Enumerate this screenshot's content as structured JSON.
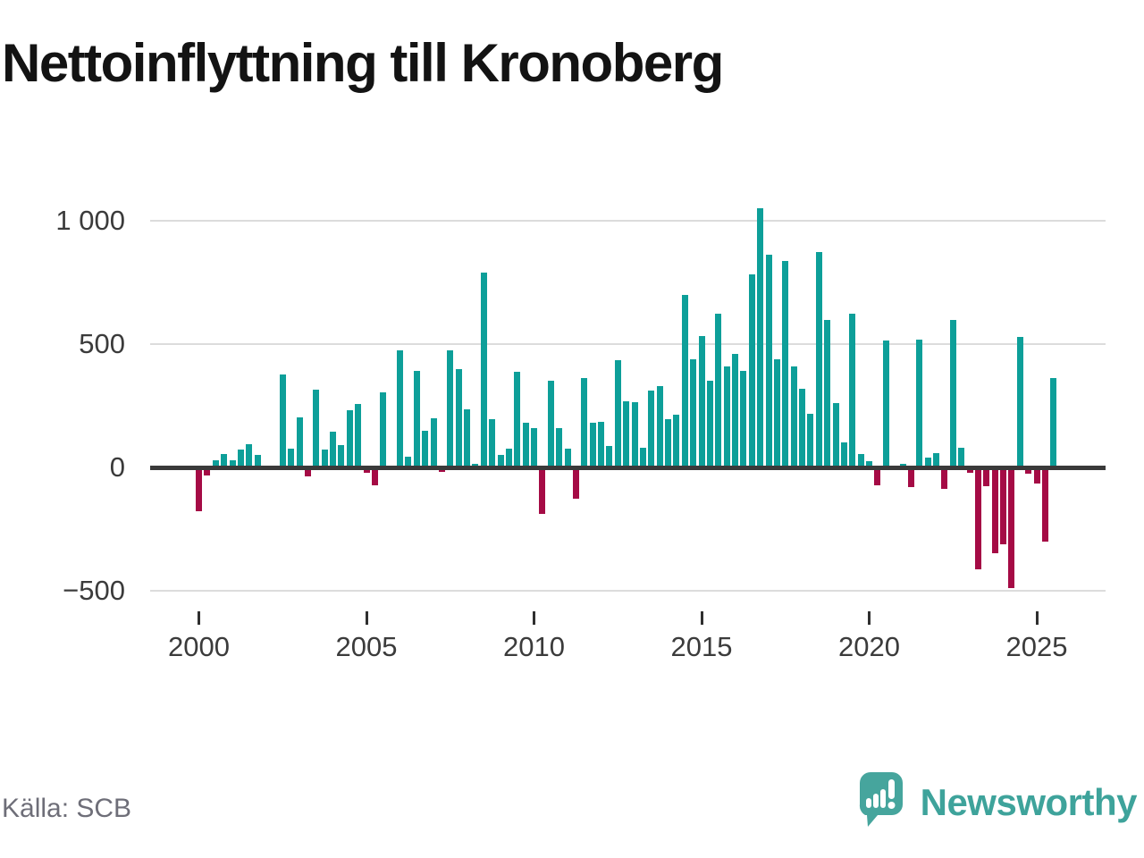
{
  "title": "Nettoinflyttning till Kronoberg",
  "source": "Källa: SCB",
  "logo": {
    "name": "Newsworthy"
  },
  "colors": {
    "positive": "#0d9f99",
    "negative": "#a50b45",
    "axis": "#3a3a3a",
    "grid": "#dcdcdc",
    "tick_text": "#3b3b3b",
    "source_text": "#6e6e78",
    "logo_teal": "#3ea39b",
    "title_text": "#131313"
  },
  "chart_data": {
    "type": "bar",
    "title": "Nettoinflyttning till Kronoberg",
    "xlabel": "",
    "ylabel": "",
    "grid": "horizontal",
    "ylim": [
      -500,
      1100
    ],
    "x_range": [
      "2000Q1",
      "2025Q3"
    ],
    "x": [
      "2000Q1",
      "2000Q2",
      "2000Q3",
      "2000Q4",
      "2001Q1",
      "2001Q2",
      "2001Q3",
      "2001Q4",
      "2002Q1",
      "2002Q2",
      "2002Q3",
      "2002Q4",
      "2003Q1",
      "2003Q2",
      "2003Q3",
      "2003Q4",
      "2004Q1",
      "2004Q2",
      "2004Q3",
      "2004Q4",
      "2005Q1",
      "2005Q2",
      "2005Q3",
      "2005Q4",
      "2006Q1",
      "2006Q2",
      "2006Q3",
      "2006Q4",
      "2007Q1",
      "2007Q2",
      "2007Q3",
      "2007Q4",
      "2008Q1",
      "2008Q2",
      "2008Q3",
      "2008Q4",
      "2009Q1",
      "2009Q2",
      "2009Q3",
      "2009Q4",
      "2010Q1",
      "2010Q2",
      "2010Q3",
      "2010Q4",
      "2011Q1",
      "2011Q2",
      "2011Q3",
      "2011Q4",
      "2012Q1",
      "2012Q2",
      "2012Q3",
      "2012Q4",
      "2013Q1",
      "2013Q2",
      "2013Q3",
      "2013Q4",
      "2014Q1",
      "2014Q2",
      "2014Q3",
      "2014Q4",
      "2015Q1",
      "2015Q2",
      "2015Q3",
      "2015Q4",
      "2016Q1",
      "2016Q2",
      "2016Q3",
      "2016Q4",
      "2017Q1",
      "2017Q2",
      "2017Q3",
      "2017Q4",
      "2018Q1",
      "2018Q2",
      "2018Q3",
      "2018Q4",
      "2019Q1",
      "2019Q2",
      "2019Q3",
      "2019Q4",
      "2020Q1",
      "2020Q2",
      "2020Q3",
      "2020Q4",
      "2021Q1",
      "2021Q2",
      "2021Q3",
      "2021Q4",
      "2022Q1",
      "2022Q2",
      "2022Q3",
      "2022Q4",
      "2023Q1",
      "2023Q2",
      "2023Q3",
      "2023Q4",
      "2024Q1",
      "2024Q2",
      "2024Q3",
      "2024Q4",
      "2025Q1",
      "2025Q2",
      "2025Q3"
    ],
    "values": [
      -178,
      -33,
      29,
      54,
      29,
      73,
      95,
      49,
      7,
      0,
      377,
      77,
      203,
      -35,
      316,
      71,
      146,
      89,
      230,
      258,
      -20,
      -72,
      303,
      0,
      472,
      43,
      390,
      149,
      198,
      -18,
      475,
      398,
      235,
      15,
      789,
      196,
      50,
      77,
      388,
      182,
      160,
      -188,
      350,
      160,
      77,
      -126,
      361,
      180,
      184,
      88,
      434,
      267,
      264,
      78,
      312,
      328,
      196,
      214,
      699,
      437,
      532,
      350,
      621,
      407,
      461,
      389,
      782,
      1048,
      860,
      439,
      836,
      410,
      320,
      218,
      872,
      595,
      259,
      103,
      623,
      55,
      26,
      -73,
      512,
      0,
      13,
      -80,
      518,
      41,
      58,
      -87,
      596,
      80,
      -22,
      -413,
      -77,
      -347,
      -310,
      -490,
      527,
      -25,
      -64,
      -300,
      362
    ],
    "yticks": [
      {
        "value": 1000,
        "label": "1 000"
      },
      {
        "value": 500,
        "label": "500"
      },
      {
        "value": 0,
        "label": "0"
      },
      {
        "value": -500,
        "label": "−500"
      }
    ],
    "xticks": [
      {
        "year": 2000,
        "label": "2000"
      },
      {
        "year": 2005,
        "label": "2005"
      },
      {
        "year": 2010,
        "label": "2010"
      },
      {
        "year": 2015,
        "label": "2015"
      },
      {
        "year": 2020,
        "label": "2020"
      },
      {
        "year": 2025,
        "label": "2025"
      }
    ],
    "legend": null,
    "series_note": "positive quarters teal, negative quarters dark red"
  }
}
